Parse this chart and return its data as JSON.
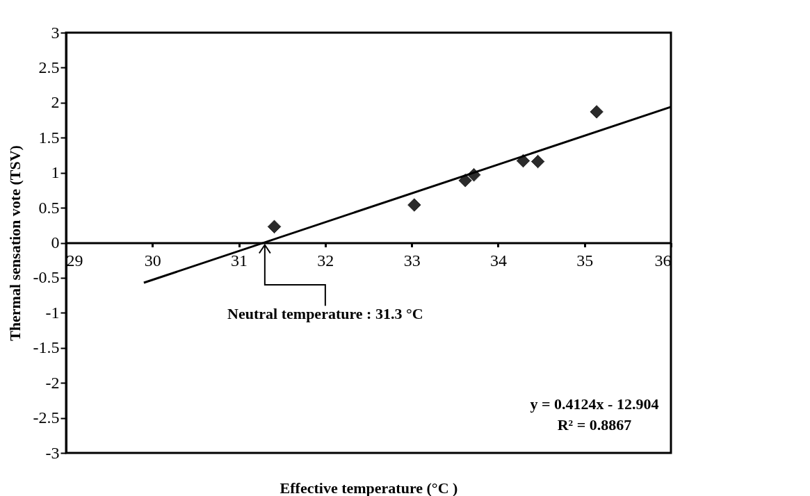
{
  "chart_data": {
    "type": "scatter",
    "xlabel": "Effective temperature (°C )",
    "ylabel": "Thermal sensation vote (TSV)",
    "xlim": [
      29,
      36
    ],
    "xticks": [
      29,
      30,
      31,
      32,
      33,
      34,
      35,
      36
    ],
    "ylim": [
      -3,
      3
    ],
    "yticks": [
      -3,
      -2.5,
      -2,
      -1.5,
      -1,
      -0.5,
      0,
      0.5,
      1,
      1.5,
      2,
      2.5,
      3
    ],
    "grid": false,
    "marker": "diamond",
    "series": [
      {
        "color": "#2b2b2b",
        "x": [
          31.41,
          33.03,
          33.62,
          33.72,
          34.29,
          34.46,
          35.14
        ],
        "values": [
          0.23,
          0.54,
          0.89,
          0.97,
          1.17,
          1.16,
          1.87
        ]
      },
      {
        "type": "line",
        "color": "#000000",
        "marker": "none",
        "x": [
          29.9,
          36
        ],
        "values": [
          -0.57,
          1.94
        ]
      }
    ],
    "annotations": [
      {
        "text": "Neutral temperature : 31.3 °C",
        "x": 31.3,
        "y": 0
      },
      "y = 0.4124x - 12.904",
      "R² = 0.8867"
    ]
  }
}
